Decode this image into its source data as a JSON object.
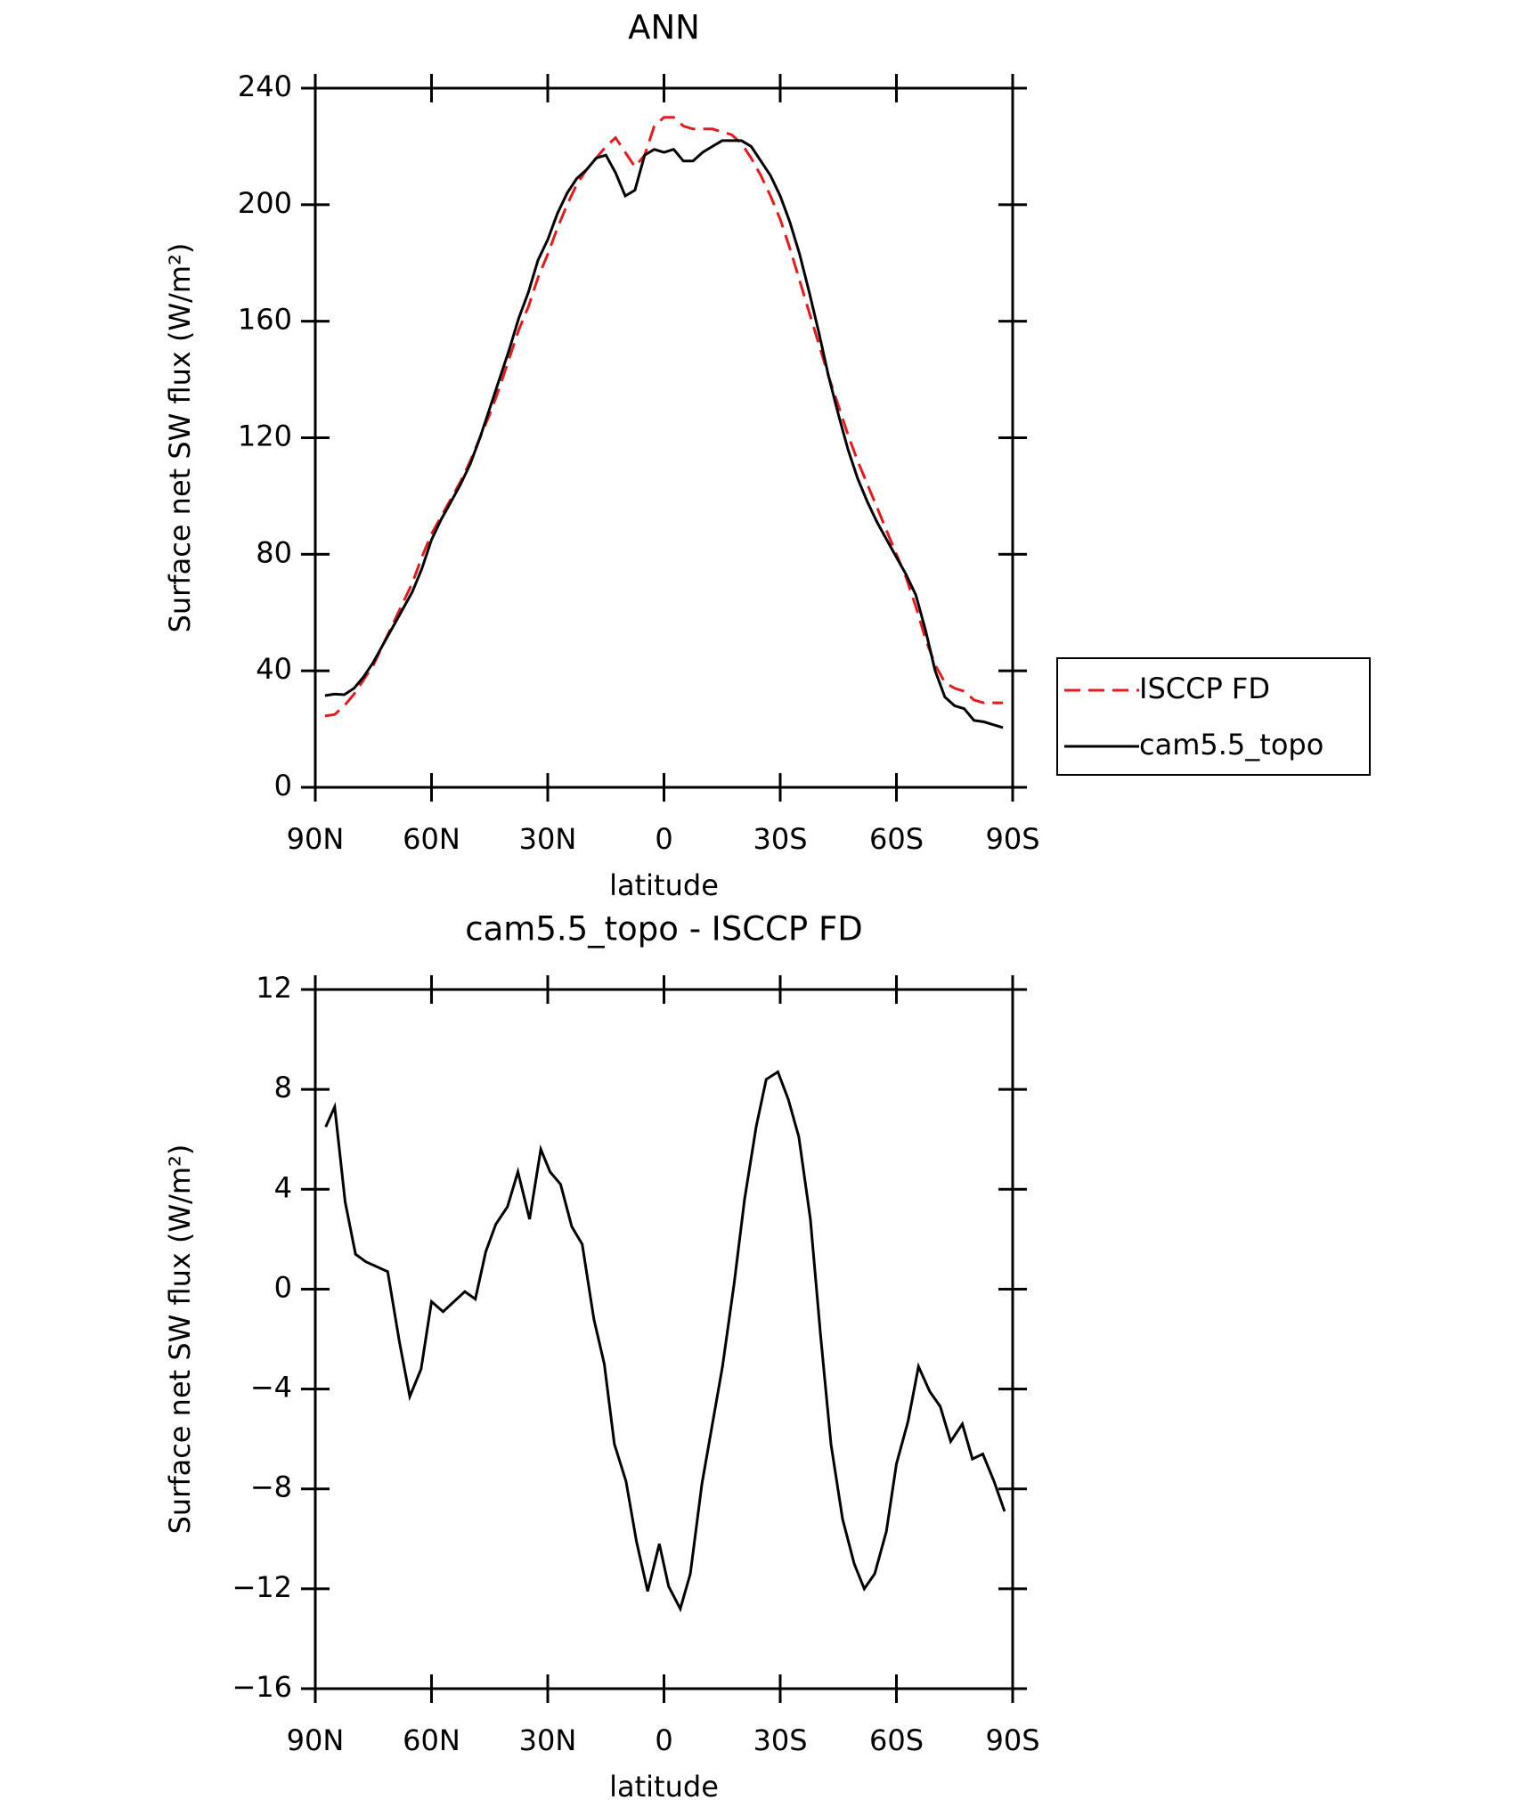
{
  "chart_data": [
    {
      "type": "line",
      "title": "ANN",
      "xlabel": "latitude",
      "ylabel": "Surface net SW flux (W/m²)",
      "xlim": [
        90,
        -90
      ],
      "xticks": [
        {
          "value": 90,
          "label": "90N"
        },
        {
          "value": 60,
          "label": "60N"
        },
        {
          "value": 30,
          "label": "30N"
        },
        0,
        {
          "value": -30,
          "label": "30S"
        },
        {
          "value": -60,
          "label": "60S"
        },
        {
          "value": -90,
          "label": "90S"
        }
      ],
      "ylim": [
        0,
        240
      ],
      "yticks": [
        0,
        40,
        80,
        120,
        160,
        200,
        240
      ],
      "legend": "outside-right",
      "x": [
        87.5,
        85,
        82.5,
        80,
        77.5,
        75,
        72.5,
        70,
        67.5,
        65,
        62.5,
        60,
        57.5,
        55,
        52.5,
        50,
        47.5,
        45,
        42.5,
        40,
        37.5,
        35,
        32.5,
        30,
        27.5,
        25,
        22.5,
        20,
        17.5,
        15,
        12.5,
        10,
        7.5,
        5,
        2.5,
        0,
        -2.5,
        -5,
        -7.5,
        -10,
        -12.5,
        -15,
        -17.5,
        -20,
        -22.5,
        -25,
        -27.5,
        -30,
        -32.5,
        -35,
        -37.5,
        -40,
        -42.5,
        -45,
        -47.5,
        -50,
        -52.5,
        -55,
        -57.5,
        -60,
        -62.5,
        -65,
        -67.5,
        -70,
        -72.5,
        -75,
        -77.5,
        -80,
        -82.5,
        -85,
        -87.5
      ],
      "series": [
        {
          "name": "ISCCP FD",
          "color": "#e41a1c",
          "style": "dashed",
          "values": [
            24.5,
            25,
            28,
            32,
            37,
            42,
            49,
            56,
            63,
            70,
            79,
            87,
            93,
            99,
            105,
            112,
            120,
            128,
            137,
            147,
            157,
            165,
            175,
            183,
            192,
            200,
            207,
            212,
            216,
            220,
            223,
            218,
            213,
            217,
            227,
            230,
            230,
            227,
            226,
            226,
            226,
            225,
            224,
            221,
            216,
            210,
            203,
            195,
            185,
            174,
            163,
            152,
            141,
            131,
            121,
            112,
            104,
            96,
            88,
            80,
            72,
            62,
            51,
            42,
            36,
            34,
            33,
            30,
            29,
            29,
            29
          ]
        },
        {
          "name": "cam5.5_topo",
          "color": "#000000",
          "style": "solid",
          "values": [
            31.5,
            32,
            31.8,
            34,
            38,
            43,
            49,
            55,
            61,
            67,
            75,
            85,
            92,
            98,
            104,
            111,
            120,
            130,
            140,
            150,
            161,
            170,
            181,
            188,
            197,
            204,
            209,
            212,
            216,
            217,
            211,
            203,
            205,
            217,
            219,
            218,
            219,
            215,
            215,
            218,
            220,
            222,
            222,
            222,
            220,
            215,
            210,
            203,
            194,
            183,
            170,
            156,
            141,
            128,
            116,
            106,
            98,
            91,
            85,
            79,
            73,
            66,
            54,
            40,
            31,
            28,
            27,
            23,
            22.5,
            21.5,
            20.5
          ]
        }
      ]
    },
    {
      "type": "line",
      "title": "cam5.5_topo - ISCCP FD",
      "xlabel": "latitude",
      "ylabel": "Surface net SW flux (W/m²)",
      "xlim": [
        90,
        -90
      ],
      "xticks": [
        {
          "value": 90,
          "label": "90N"
        },
        {
          "value": 60,
          "label": "60N"
        },
        {
          "value": 30,
          "label": "30N"
        },
        0,
        {
          "value": -30,
          "label": "30S"
        },
        {
          "value": -60,
          "label": "60S"
        },
        {
          "value": -90,
          "label": "90S"
        }
      ],
      "ylim": [
        -16,
        12
      ],
      "yticks": [
        -16,
        -12,
        -8,
        -4,
        0,
        4,
        8,
        12
      ],
      "x": [
        87.3,
        85,
        82.3,
        79.6,
        77,
        71.3,
        68.3,
        65.6,
        62.7,
        60,
        57,
        51.4,
        48.7,
        46,
        43.4,
        40.4,
        37.7,
        34.7,
        31.8,
        29.4,
        26.7,
        23.8,
        21.1,
        18.1,
        15.4,
        12.8,
        9.8,
        7.1,
        4.2,
        1.2,
        -1.2,
        -4.2,
        -6.8,
        -9.8,
        -15.1,
        -18.1,
        -20.8,
        -23.8,
        -26.4,
        -29.4,
        -32.1,
        -34.8,
        -37.8,
        -40.4,
        -43.1,
        -46.1,
        -49.1,
        -51.7,
        -54.4,
        -57.4,
        -60,
        -63,
        -65.7,
        -68.6,
        -71.3,
        -74,
        -77,
        -79.6,
        -82.3,
        -85.2,
        -87.9
      ],
      "series": [
        {
          "name": "cam5.5_topo - ISCCP FD",
          "color": "#000000",
          "style": "solid",
          "values": [
            6.5,
            7.3,
            3.5,
            1.4,
            1.1,
            0.7,
            -2.1,
            -4.3,
            -3.2,
            -0.5,
            -0.9,
            -0.1,
            -0.4,
            1.5,
            2.6,
            3.3,
            4.7,
            2.8,
            5.6,
            4.7,
            4.2,
            2.5,
            1.8,
            -1.2,
            -3.0,
            -6.2,
            -7.7,
            -10.1,
            -12.1,
            -10.2,
            -11.9,
            -12.8,
            -11.4,
            -7.8,
            -3.1,
            0.2,
            3.6,
            6.5,
            8.4,
            8.7,
            7.6,
            6.1,
            2.8,
            -1.8,
            -6.2,
            -9.2,
            -11.0,
            -12.0,
            -11.4,
            -9.7,
            -7.0,
            -5.3,
            -3.1,
            -4.1,
            -4.7,
            -6.1,
            -5.4,
            -6.8,
            -6.6,
            -7.7,
            -8.9
          ]
        }
      ]
    }
  ]
}
